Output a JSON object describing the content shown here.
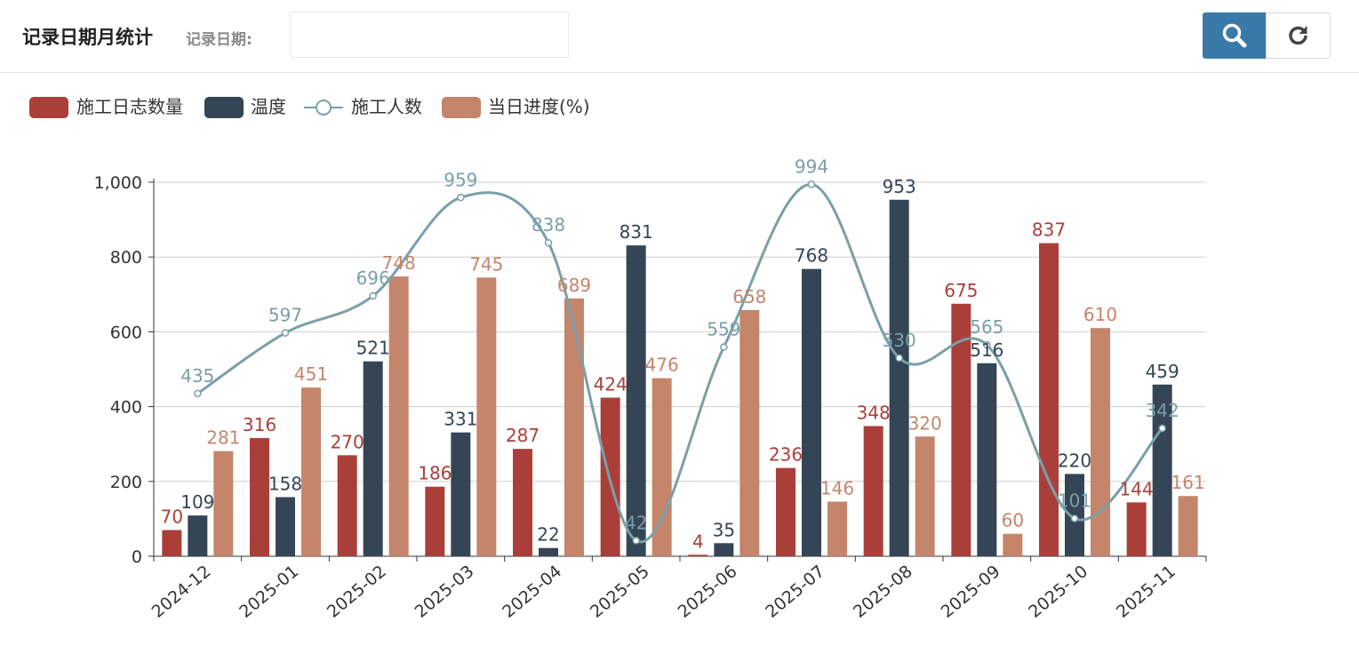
{
  "header": {
    "title": "记录日期月统计",
    "filter_label": "记录日期:",
    "date_value": "",
    "date_placeholder": ""
  },
  "icons": {
    "search": "search-icon",
    "refresh": "refresh-icon",
    "line_marker": "circle-marker-icon"
  },
  "colors": {
    "log_count": "#aa3f3a",
    "temperature": "#344556",
    "workers": "#7a9fa8",
    "progress": "#c4856b"
  },
  "chart_data": {
    "type": "bar",
    "categories": [
      "2024-12",
      "2025-01",
      "2025-02",
      "2025-03",
      "2025-04",
      "2025-05",
      "2025-06",
      "2025-07",
      "2025-08",
      "2025-09",
      "2025-10",
      "2025-11"
    ],
    "series": [
      {
        "name": "施工日志数量",
        "type": "bar",
        "values": [
          70,
          316,
          270,
          186,
          287,
          424,
          4,
          236,
          348,
          675,
          837,
          144
        ]
      },
      {
        "name": "温度",
        "type": "bar",
        "values": [
          109,
          158,
          521,
          331,
          22,
          831,
          35,
          768,
          953,
          516,
          220,
          459
        ]
      },
      {
        "name": "施工人数",
        "type": "line",
        "smooth": true,
        "values": [
          435,
          597,
          696,
          959,
          838,
          42,
          559,
          994,
          530,
          565,
          101,
          342
        ]
      },
      {
        "name": "当日进度(%)",
        "type": "bar",
        "values": [
          281,
          451,
          748,
          745,
          689,
          476,
          658,
          146,
          320,
          60,
          610,
          161
        ]
      }
    ],
    "yticks": [
      "0",
      "200",
      "400",
      "600",
      "800",
      "1,000"
    ],
    "ylim": [
      0,
      1000
    ],
    "legend_position": "top-left",
    "grid": true
  }
}
